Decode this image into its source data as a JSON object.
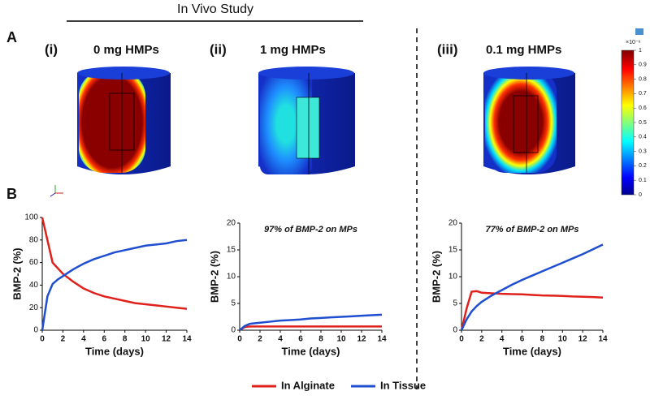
{
  "figure": {
    "title": "In Vivo Study",
    "panel_a": "A",
    "panel_b": "B",
    "columns": [
      {
        "label": "(i)",
        "title": "0 mg HMPs"
      },
      {
        "label": "(ii)",
        "title": "1 mg HMPs"
      },
      {
        "label": "(iii)",
        "title": "0.1 mg HMPs"
      }
    ],
    "colorbar": {
      "exponent": "×10⁻⁶",
      "ticks": [
        0,
        0.1,
        0.2,
        0.3,
        0.4,
        0.5,
        0.6,
        0.7,
        0.8,
        0.9,
        1
      ]
    },
    "legend": [
      {
        "name": "In Alginate",
        "color": "#e0201b"
      },
      {
        "name": "In Tissue",
        "color": "#1f4fd0"
      }
    ]
  },
  "chart_data": [
    {
      "type": "line",
      "xlabel": "Time (days)",
      "ylabel": "BMP-2 (%)",
      "x": [
        0,
        0.5,
        1,
        1.5,
        2,
        3,
        4,
        5,
        6,
        7,
        8,
        9,
        10,
        11,
        12,
        13,
        14
      ],
      "xlim": [
        0,
        14
      ],
      "xticks": [
        0,
        2,
        4,
        6,
        8,
        10,
        12,
        14
      ],
      "ylim": [
        0,
        100
      ],
      "yticks": [
        0,
        20,
        40,
        60,
        80,
        100
      ],
      "series": [
        {
          "color": "#e0201b",
          "values": [
            100,
            80,
            60,
            55,
            50,
            43,
            37,
            33,
            30,
            28,
            26,
            24,
            23,
            22,
            21,
            20,
            19
          ]
        },
        {
          "color": "#1f4fd0",
          "values": [
            0,
            30,
            41,
            45,
            48,
            54,
            59,
            63,
            66,
            69,
            71,
            73,
            75,
            76,
            77,
            79,
            80
          ]
        }
      ]
    },
    {
      "type": "line",
      "xlabel": "Time (days)",
      "ylabel": "BMP-2 (%)",
      "annotation": "97% of BMP-2 on MPs",
      "x": [
        0,
        0.5,
        1,
        1.5,
        2,
        3,
        4,
        5,
        6,
        7,
        8,
        9,
        10,
        11,
        12,
        13,
        14
      ],
      "xlim": [
        0,
        14
      ],
      "xticks": [
        0,
        2,
        4,
        6,
        8,
        10,
        12,
        14
      ],
      "ylim": [
        0,
        20
      ],
      "yticks": [
        0,
        5,
        10,
        15,
        20
      ],
      "series": [
        {
          "color": "#e0201b",
          "values": [
            0,
            0.6,
            0.7,
            0.7,
            0.7,
            0.7,
            0.7,
            0.7,
            0.7,
            0.7,
            0.7,
            0.7,
            0.7,
            0.7,
            0.7,
            0.7,
            0.7
          ]
        },
        {
          "color": "#1f4fd0",
          "values": [
            0,
            0.8,
            1.2,
            1.3,
            1.4,
            1.6,
            1.8,
            1.9,
            2.0,
            2.2,
            2.3,
            2.4,
            2.5,
            2.6,
            2.7,
            2.8,
            2.9
          ]
        }
      ]
    },
    {
      "type": "line",
      "xlabel": "Time (days)",
      "ylabel": "BMP-2 (%)",
      "annotation": "77% of BMP-2 on MPs",
      "x": [
        0,
        0.5,
        1,
        1.5,
        2,
        3,
        4,
        5,
        6,
        7,
        8,
        9,
        10,
        11,
        12,
        13,
        14
      ],
      "xlim": [
        0,
        14
      ],
      "xticks": [
        0,
        2,
        4,
        6,
        8,
        10,
        12,
        14
      ],
      "ylim": [
        0,
        20
      ],
      "yticks": [
        0,
        5,
        10,
        15,
        20
      ],
      "series": [
        {
          "color": "#e0201b",
          "values": [
            0,
            4,
            7.2,
            7.3,
            7.0,
            6.9,
            6.8,
            6.75,
            6.7,
            6.6,
            6.5,
            6.45,
            6.4,
            6.3,
            6.25,
            6.2,
            6.1
          ]
        },
        {
          "color": "#1f4fd0",
          "values": [
            0,
            2,
            3.5,
            4.5,
            5.3,
            6.5,
            7.5,
            8.5,
            9.4,
            10.2,
            11,
            11.8,
            12.6,
            13.4,
            14.2,
            15.1,
            16
          ]
        }
      ]
    }
  ]
}
